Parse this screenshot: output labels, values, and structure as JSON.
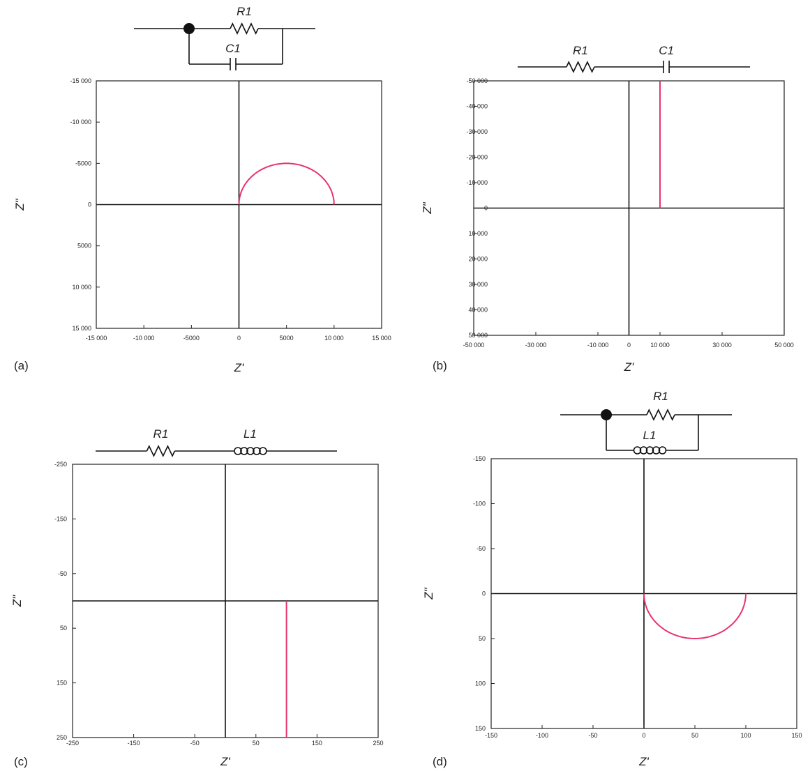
{
  "chart_data": [
    {
      "panel": "(a)",
      "type": "line",
      "circuit": {
        "topology": "parallel",
        "top": "R1",
        "bottom": "C1"
      },
      "xlabel": "Z'",
      "ylabel": "Z\"",
      "xlim": [
        -15000,
        15000
      ],
      "ylim": [
        -15000,
        15000
      ],
      "y_inverted": true,
      "xticks": [
        -15000,
        -10000,
        -5000,
        0,
        5000,
        10000,
        15000
      ],
      "xtick_labels": [
        "-15 000",
        "-10 000",
        "-5000",
        "0",
        "5000",
        "10 000",
        "15 000"
      ],
      "yticks": [
        -15000,
        -10000,
        -5000,
        0,
        5000,
        10000,
        15000
      ],
      "ytick_labels": [
        "-15 000",
        "-10 000",
        "-5000",
        "0",
        "5000",
        "10 000",
        "15 000"
      ],
      "series": [
        {
          "shape": "semicircle",
          "center": [
            5000,
            0
          ],
          "radius": 5000,
          "side": "negative"
        }
      ],
      "color": "#e8336b"
    },
    {
      "panel": "(b)",
      "type": "line",
      "circuit": {
        "topology": "series",
        "parts": [
          "R1",
          "C1"
        ]
      },
      "xlabel": "Z'",
      "ylabel": "Z\"",
      "xlim": [
        -50000,
        50000
      ],
      "ylim": [
        -50000,
        50000
      ],
      "y_inverted": true,
      "xticks": [
        -50000,
        -30000,
        -10000,
        0,
        10000,
        30000,
        50000
      ],
      "xtick_labels": [
        "-50 000",
        "-30 000",
        "-10 000",
        "0",
        "10 000",
        "30 000",
        "50 000"
      ],
      "yticks": [
        -50000,
        -40000,
        -30000,
        -20000,
        -10000,
        0,
        10000,
        20000,
        30000,
        40000,
        50000
      ],
      "ytick_labels": [
        "-50 000",
        "-40 000",
        "-30 000",
        "-20 000",
        "-10 000",
        "0",
        "10 000",
        "20 000",
        "30 000",
        "40 000",
        "50 000"
      ],
      "series": [
        {
          "shape": "vertical",
          "x": 10000,
          "y_from": 0,
          "y_to": -50000
        }
      ],
      "color": "#e8336b"
    },
    {
      "panel": "(c)",
      "type": "line",
      "circuit": {
        "topology": "series",
        "parts": [
          "R1",
          "L1"
        ]
      },
      "xlabel": "Z'",
      "ylabel": "Z\"",
      "xlim": [
        -250,
        250
      ],
      "ylim": [
        -250,
        250
      ],
      "y_inverted": true,
      "xticks": [
        -250,
        -150,
        -50,
        50,
        150,
        250
      ],
      "xtick_labels": [
        "-250",
        "-150",
        "-50",
        "50",
        "150",
        "250"
      ],
      "yticks": [
        -250,
        -150,
        -50,
        50,
        150,
        250
      ],
      "ytick_labels": [
        "-250",
        "-150",
        "-50",
        "50",
        "150",
        "250"
      ],
      "series": [
        {
          "shape": "vertical",
          "x": 100,
          "y_from": 0,
          "y_to": 250
        }
      ],
      "color": "#e8336b"
    },
    {
      "panel": "(d)",
      "type": "line",
      "circuit": {
        "topology": "parallel",
        "top": "R1",
        "bottom": "L1"
      },
      "xlabel": "Z'",
      "ylabel": "Z\"",
      "xlim": [
        -150,
        150
      ],
      "ylim": [
        -150,
        150
      ],
      "y_inverted": true,
      "xticks": [
        -150,
        -100,
        -50,
        0,
        50,
        100,
        150
      ],
      "xtick_labels": [
        "-150",
        "-100",
        "-50",
        "0",
        "50",
        "100",
        "150"
      ],
      "yticks": [
        -150,
        -100,
        -50,
        0,
        50,
        100,
        150
      ],
      "ytick_labels": [
        "-150",
        "-100",
        "-50",
        "0",
        "50",
        "100",
        "150"
      ],
      "series": [
        {
          "shape": "semicircle",
          "center": [
            50,
            0
          ],
          "radius": 50,
          "side": "positive"
        }
      ],
      "color": "#e8336b"
    }
  ]
}
